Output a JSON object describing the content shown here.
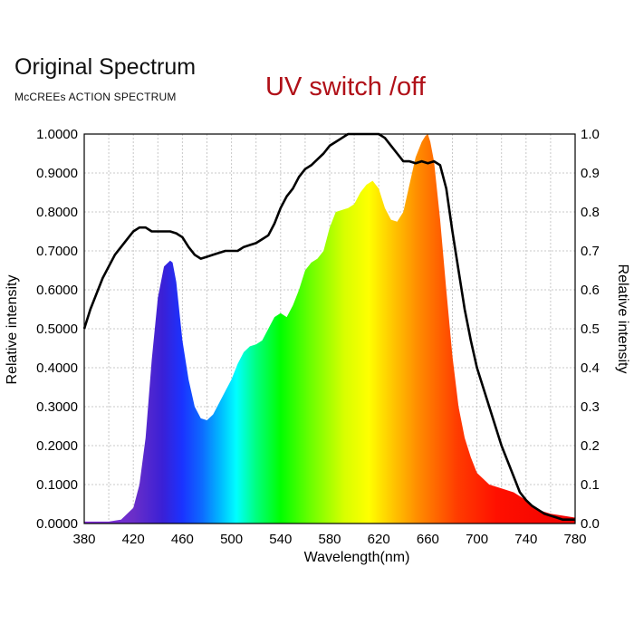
{
  "chart_data": {
    "type": "area",
    "title": "Original Spectrum",
    "subtitle": "McCREEs ACTION SPECTRUM",
    "annotation": "UV switch /off",
    "xlabel": "Wavelength(nm)",
    "ylabel": "Relative intensity",
    "y2label": "Relative intensity",
    "xlim": [
      380,
      780
    ],
    "ylim": [
      0,
      1
    ],
    "y2lim": [
      0,
      1
    ],
    "grid": true,
    "x_ticks": [
      380,
      420,
      460,
      500,
      540,
      580,
      620,
      660,
      700,
      740,
      780
    ],
    "x_tick_labels": [
      "380",
      "420",
      "460",
      "500",
      "540",
      "580",
      "620",
      "660",
      "700",
      "740",
      "780"
    ],
    "y_ticks": [
      0,
      0.1,
      0.2,
      0.3,
      0.4,
      0.5,
      0.6,
      0.7,
      0.8,
      0.9,
      1.0
    ],
    "y_tick_labels": [
      "0.0000",
      "0.1000",
      "0.2000",
      "0.3000",
      "0.4000",
      "0.5000",
      "0.6000",
      "0.7000",
      "0.8000",
      "0.9000",
      "1.0000"
    ],
    "y2_tick_labels": [
      "0.0",
      "0.1",
      "0.2",
      "0.3",
      "0.4",
      "0.5",
      "0.6",
      "0.7",
      "0.8",
      "0.9",
      "1.0"
    ],
    "series": [
      {
        "style": "filled spectral gradient",
        "x": [
          380,
          400,
          410,
          420,
          425,
          430,
          435,
          440,
          445,
          450,
          452,
          455,
          458,
          460,
          465,
          470,
          475,
          480,
          485,
          490,
          495,
          500,
          505,
          510,
          515,
          520,
          525,
          530,
          535,
          540,
          545,
          550,
          555,
          560,
          565,
          570,
          575,
          580,
          585,
          590,
          595,
          600,
          605,
          610,
          615,
          620,
          625,
          630,
          635,
          640,
          645,
          650,
          655,
          658,
          660,
          662,
          665,
          670,
          675,
          680,
          685,
          690,
          695,
          700,
          705,
          710,
          720,
          730,
          740,
          750,
          760,
          770,
          780
        ],
        "y": [
          0.005,
          0.005,
          0.01,
          0.04,
          0.1,
          0.22,
          0.42,
          0.58,
          0.66,
          0.675,
          0.67,
          0.62,
          0.53,
          0.47,
          0.37,
          0.3,
          0.27,
          0.265,
          0.28,
          0.31,
          0.34,
          0.37,
          0.41,
          0.44,
          0.455,
          0.46,
          0.47,
          0.5,
          0.53,
          0.54,
          0.53,
          0.56,
          0.6,
          0.65,
          0.67,
          0.68,
          0.7,
          0.76,
          0.8,
          0.805,
          0.81,
          0.82,
          0.85,
          0.87,
          0.88,
          0.86,
          0.81,
          0.78,
          0.775,
          0.8,
          0.87,
          0.94,
          0.98,
          0.995,
          1.0,
          0.98,
          0.93,
          0.78,
          0.6,
          0.43,
          0.3,
          0.22,
          0.17,
          0.13,
          0.115,
          0.1,
          0.09,
          0.08,
          0.06,
          0.035,
          0.025,
          0.02,
          0.015
        ]
      },
      {
        "style": "black line",
        "x": [
          380,
          385,
          390,
          395,
          400,
          405,
          410,
          415,
          420,
          425,
          430,
          435,
          440,
          445,
          450,
          455,
          460,
          465,
          470,
          475,
          480,
          485,
          490,
          495,
          500,
          505,
          510,
          515,
          520,
          525,
          530,
          535,
          540,
          545,
          550,
          555,
          560,
          565,
          570,
          575,
          580,
          585,
          590,
          595,
          600,
          605,
          610,
          615,
          620,
          625,
          630,
          635,
          640,
          645,
          650,
          655,
          660,
          665,
          670,
          675,
          680,
          685,
          690,
          695,
          700,
          705,
          710,
          715,
          720,
          725,
          730,
          735,
          740,
          745,
          750,
          755,
          760,
          765,
          770,
          775,
          780
        ],
        "y": [
          0.5,
          0.55,
          0.59,
          0.63,
          0.66,
          0.69,
          0.71,
          0.73,
          0.75,
          0.76,
          0.76,
          0.75,
          0.75,
          0.75,
          0.75,
          0.745,
          0.735,
          0.71,
          0.69,
          0.68,
          0.685,
          0.69,
          0.695,
          0.7,
          0.7,
          0.7,
          0.71,
          0.715,
          0.72,
          0.73,
          0.74,
          0.77,
          0.81,
          0.84,
          0.86,
          0.89,
          0.91,
          0.92,
          0.935,
          0.95,
          0.97,
          0.98,
          0.99,
          1.0,
          1.0,
          1.0,
          1.0,
          1.0,
          1.0,
          0.99,
          0.97,
          0.95,
          0.93,
          0.93,
          0.925,
          0.93,
          0.925,
          0.93,
          0.92,
          0.86,
          0.75,
          0.65,
          0.55,
          0.47,
          0.4,
          0.35,
          0.3,
          0.25,
          0.2,
          0.16,
          0.12,
          0.08,
          0.06,
          0.045,
          0.035,
          0.025,
          0.02,
          0.015,
          0.01,
          0.01,
          0.01
        ]
      }
    ]
  }
}
